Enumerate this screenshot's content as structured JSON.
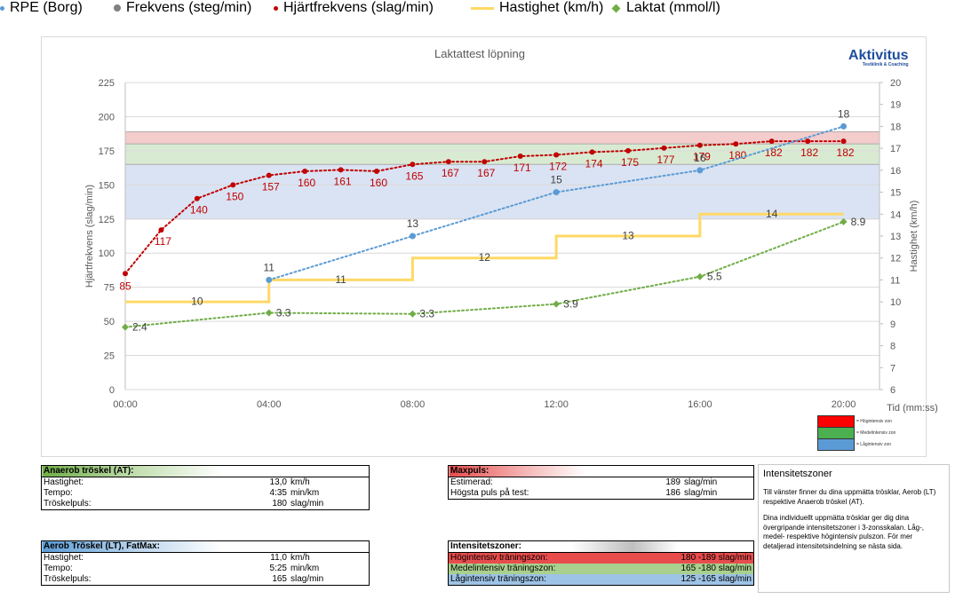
{
  "chart_data": {
    "type": "line",
    "title": "Laktattest löpning",
    "xlabel": "Tid (mm:ss)",
    "ylabel_left": "Hjärtfrekvens (slag/min)",
    "ylabel_right": "Hastighet (km/h)",
    "x_ticks": [
      "00:00",
      "04:00",
      "08:00",
      "12:00",
      "16:00",
      "20:00"
    ],
    "x_range_minutes": [
      0,
      21
    ],
    "y_left_range": [
      0,
      225
    ],
    "y_left_ticks": [
      "0",
      "25",
      "50",
      "75",
      "100",
      "125",
      "150",
      "175",
      "200",
      "225"
    ],
    "y_right_range": [
      6,
      20
    ],
    "y_right_ticks": [
      "6",
      "7",
      "8",
      "9",
      "10",
      "11",
      "12",
      "13",
      "14",
      "15",
      "16",
      "17",
      "18",
      "19",
      "20"
    ],
    "zones": [
      {
        "name": "Högintensiv zon",
        "from": 180,
        "to": 189,
        "color": "#f4cccc"
      },
      {
        "name": "Medelintensiv zon",
        "from": 165,
        "to": 180,
        "color": "#d9ead3"
      },
      {
        "name": "Lågintensiv zon",
        "from": 125,
        "to": 165,
        "color": "#dae3f3"
      }
    ],
    "series": [
      {
        "name": "RPE (Borg)",
        "axis": "right",
        "color": "#5b9bd5",
        "style": "dotted",
        "x": [
          4,
          8,
          12,
          16,
          20
        ],
        "values": [
          11,
          13,
          15,
          16,
          18
        ],
        "labels": [
          "11",
          "13",
          "15",
          "16",
          "18"
        ]
      },
      {
        "name": "Frekvens (steg/min)",
        "axis": "left",
        "color": "#808080",
        "style": "marker",
        "x": [],
        "values": [],
        "labels": []
      },
      {
        "name": "Hjärtfrekvens (slag/min)",
        "axis": "left",
        "color": "#c00000",
        "style": "dotted",
        "x": [
          0,
          1,
          2,
          3,
          4,
          5,
          6,
          7,
          8,
          9,
          10,
          11,
          12,
          13,
          14,
          15,
          16,
          17,
          18,
          19,
          20
        ],
        "values": [
          85,
          117,
          140,
          150,
          157,
          160,
          161,
          160,
          165,
          167,
          167,
          171,
          172,
          174,
          175,
          177,
          179,
          180,
          182,
          182,
          182
        ],
        "labels": [
          "85",
          "117",
          "140",
          "150",
          "157",
          "160",
          "161",
          "160",
          "165",
          "167",
          "167",
          "171",
          "172",
          "174",
          "175",
          "177",
          "179",
          "180",
          "182",
          "182",
          "182"
        ]
      },
      {
        "name": "Hastighet (km/h)",
        "axis": "right",
        "color": "#ffd966",
        "style": "step",
        "x": [
          0,
          4,
          8,
          12,
          16,
          20
        ],
        "values": [
          10,
          11,
          12,
          13,
          14,
          14
        ],
        "labels": [
          "10",
          "11",
          "12",
          "13",
          "14"
        ]
      },
      {
        "name": "Laktat (mmol/l)",
        "axis": "right",
        "color": "#70ad47",
        "style": "dotted",
        "x": [
          0,
          4,
          8,
          12,
          16,
          20
        ],
        "values": [
          8.85,
          9.5,
          9.45,
          9.9,
          11.15,
          13.65
        ],
        "labels": [
          "2.4",
          "3.3",
          "3.3",
          "3.9",
          "5.5",
          "8.9"
        ]
      }
    ]
  },
  "logo": {
    "main": "Aktivitus",
    "sub": "Testklinik & Coaching"
  },
  "zone_key": [
    {
      "label": "= Högintensiv zon",
      "color": "#ff0000"
    },
    {
      "label": "= Medelintensiv zon",
      "color": "#4caf50"
    },
    {
      "label": "= Lågintensiv zon",
      "color": "#5b9bd5"
    }
  ],
  "anaerob": {
    "title": "Anaerob tröskel (AT):",
    "rows": [
      {
        "label": "Hastighet:",
        "value": "13,0",
        "unit": "km/h"
      },
      {
        "label": "Tempo:",
        "value": "4:35",
        "unit": "min/km"
      },
      {
        "label": "Tröskelpuls:",
        "value": "180",
        "unit": "slag/min"
      }
    ]
  },
  "aerob": {
    "title": "Aerob Tröskel (LT), FatMax:",
    "rows": [
      {
        "label": "Hastighet:",
        "value": "11,0",
        "unit": "km/h"
      },
      {
        "label": "Tempo:",
        "value": "5:25",
        "unit": "min/km"
      },
      {
        "label": "Tröskelpuls:",
        "value": "165",
        "unit": "slag/min"
      }
    ]
  },
  "maxpuls": {
    "title": "Maxpuls:",
    "rows": [
      {
        "label": "Estimerad:",
        "value": "189",
        "unit": "slag/min"
      },
      {
        "label": "Högsta puls på test:",
        "value": "186",
        "unit": "slag/min"
      }
    ]
  },
  "zones_table": {
    "title": "Intensitetszoner:",
    "rows": [
      {
        "label": "Högintensiv träningszon:",
        "value": "180 -189 slag/min",
        "color": "#e84c4c"
      },
      {
        "label": "Medelintensiv träningszon:",
        "value": "165 -180 slag/min",
        "color": "#a9d08e"
      },
      {
        "label": "Lågintensiv träningszon:",
        "value": "125 -165 slag/min",
        "color": "#9dc3e6"
      }
    ]
  },
  "info": {
    "title": "Intensitetszoner",
    "p1": "Till vänster finner du dina uppmätta trösklar, Aerob (LT) respektive Anaerob tröskel (AT).",
    "p2": "Dina individuellt uppmätta trösklar ger dig dina övergripande intensitetszoner i 3-zonsskalan. Låg-, medel- respektive högintensiv pulszon. För mer detaljerad intensitetsindelning se nästa sida."
  }
}
